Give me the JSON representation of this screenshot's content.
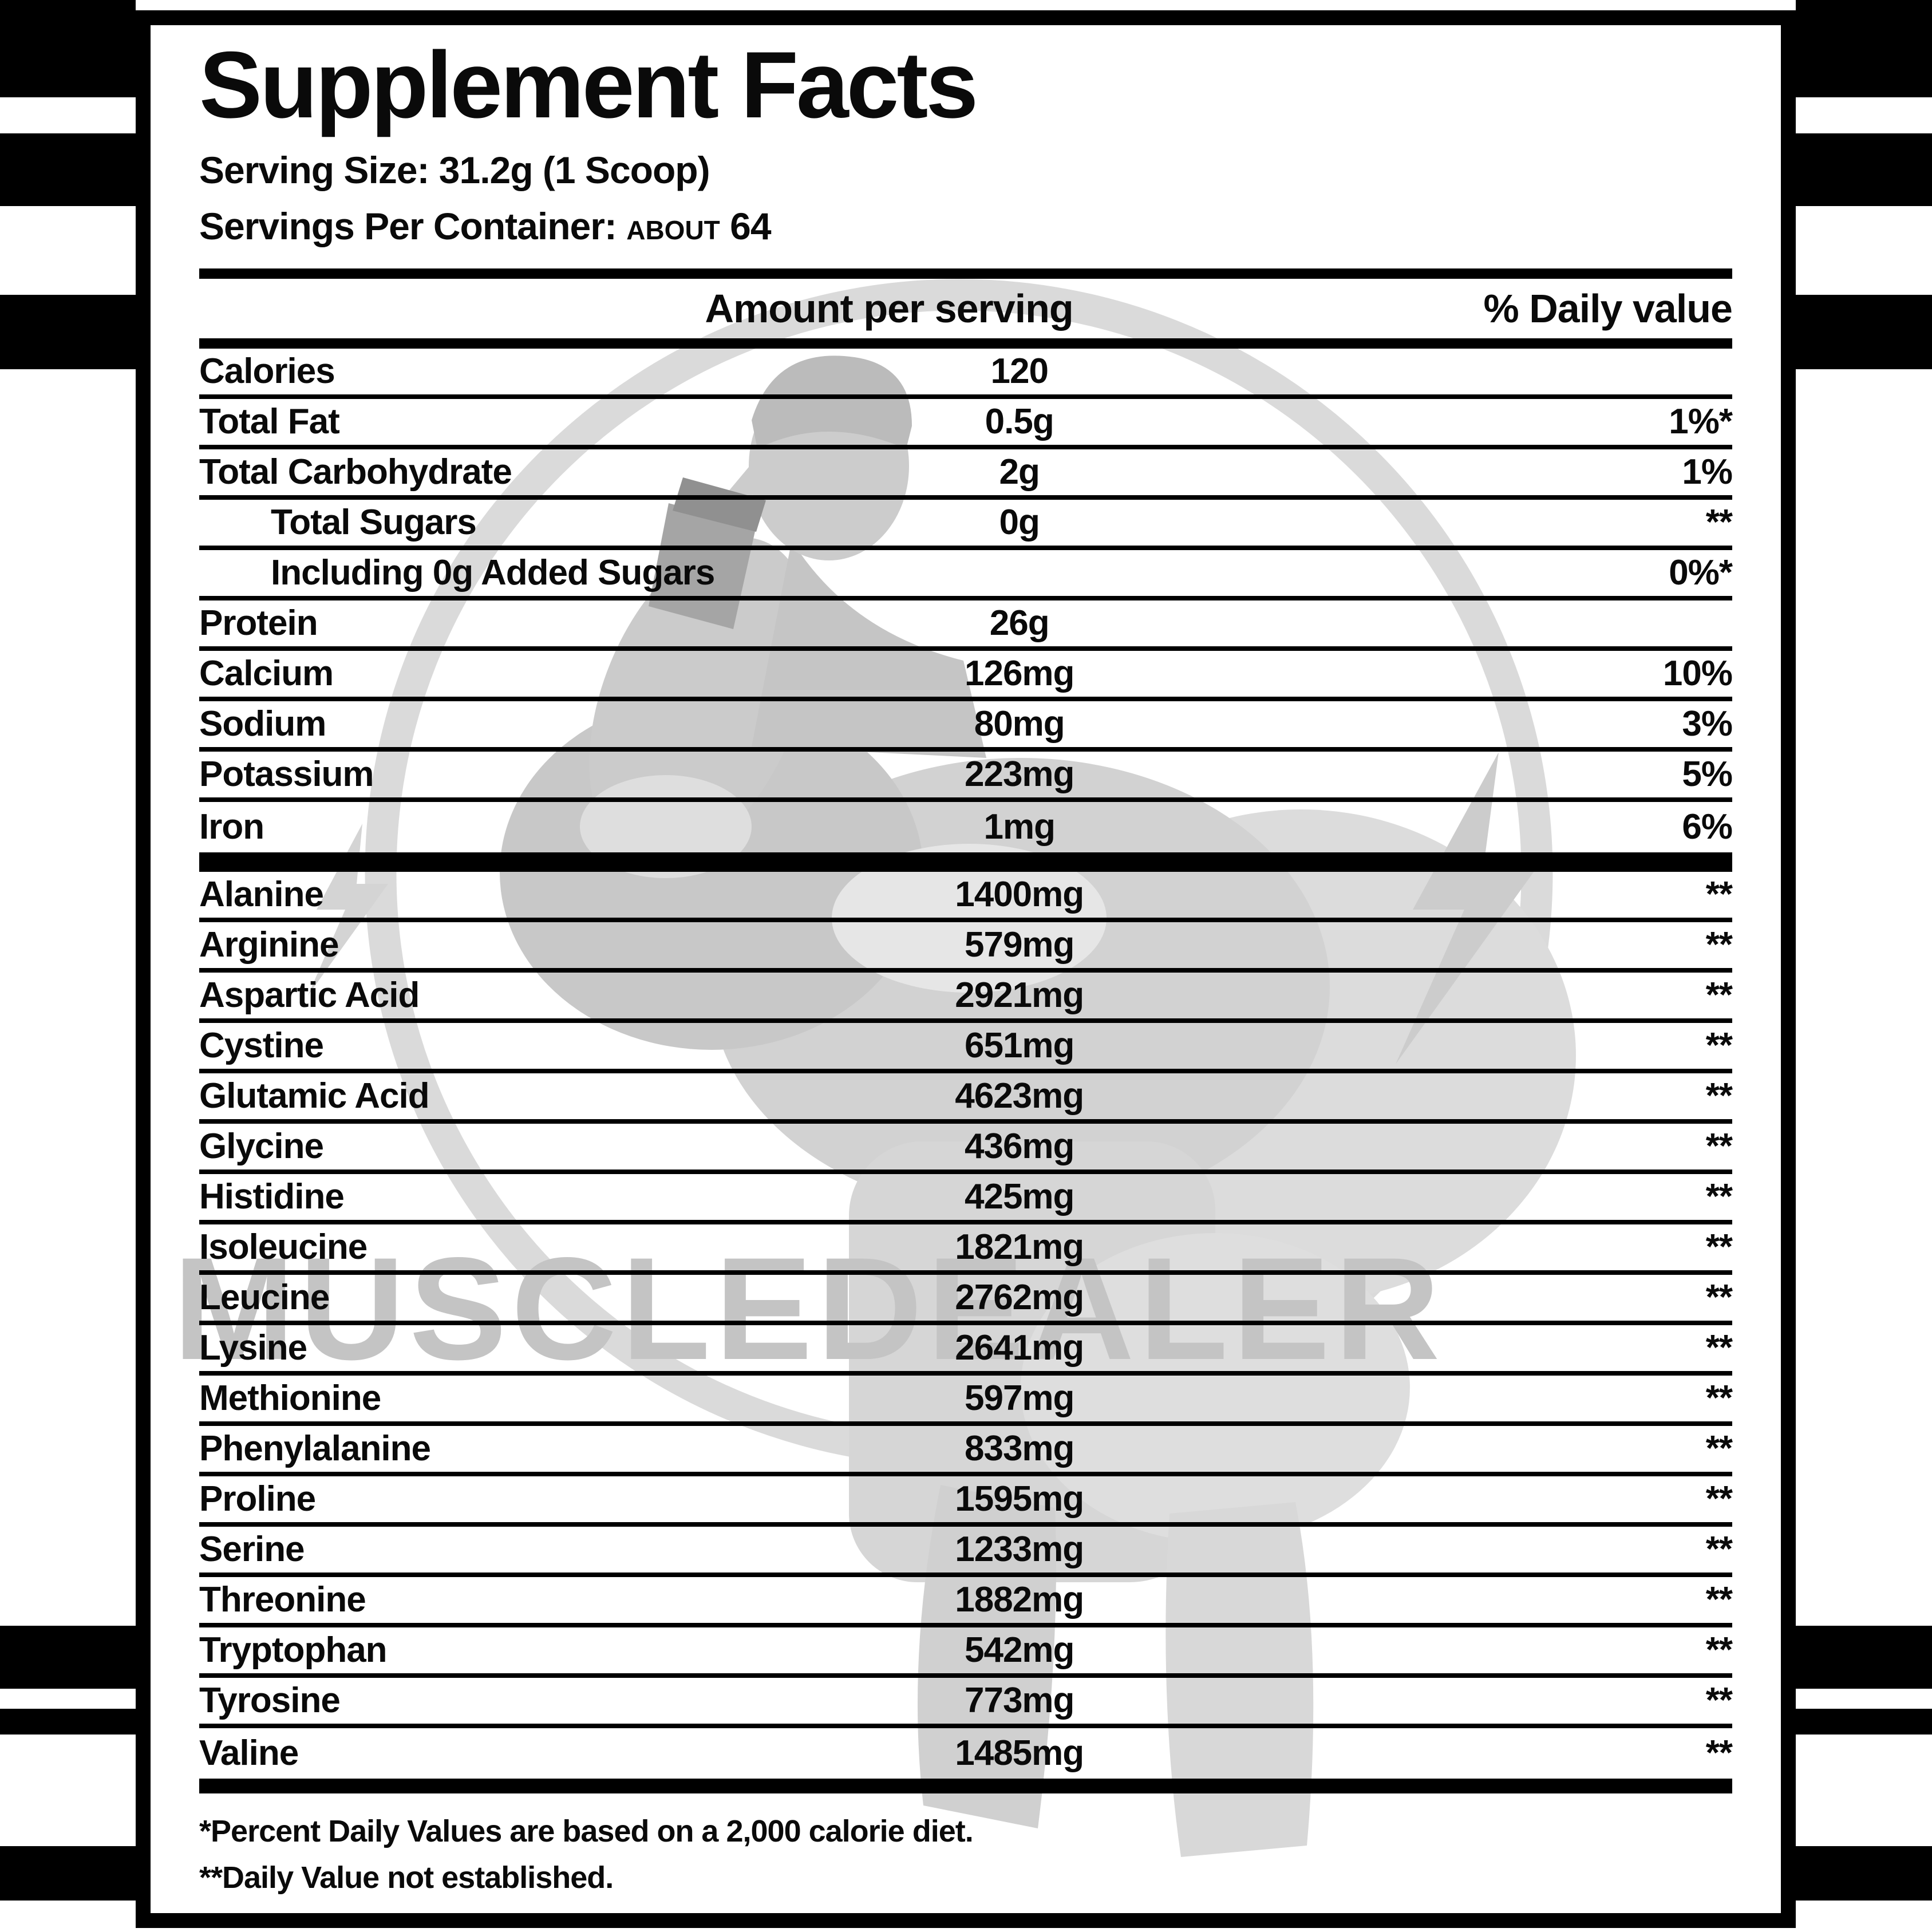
{
  "label": {
    "title": "Supplement Facts",
    "serving_size_line": "Serving Size: 31.2g (1 Scoop)",
    "servings_per_container_label": "Servings Per Container:",
    "servings_about": "ABOUT",
    "servings_value": "64",
    "columns": {
      "amount": "Amount per serving",
      "dv": "% Daily value"
    },
    "nutrients": [
      {
        "name": "Calories",
        "amount": "120",
        "dv": "",
        "indent": false
      },
      {
        "name": "Total Fat",
        "amount": "0.5g",
        "dv": "1%*",
        "indent": false
      },
      {
        "name": "Total Carbohydrate",
        "amount": "2g",
        "dv": "1%",
        "indent": false
      },
      {
        "name": "Total Sugars",
        "amount": "0g",
        "dv": "**",
        "indent": true
      },
      {
        "name": "Including 0g Added Sugars",
        "amount": "",
        "dv": "0%*",
        "indent": true
      },
      {
        "name": "Protein",
        "amount": "26g",
        "dv": "",
        "indent": false
      },
      {
        "name": "Calcium",
        "amount": "126mg",
        "dv": "10%",
        "indent": false
      },
      {
        "name": "Sodium",
        "amount": "80mg",
        "dv": "3%",
        "indent": false
      },
      {
        "name": "Potassium",
        "amount": "223mg",
        "dv": "5%",
        "indent": false
      },
      {
        "name": "Iron",
        "amount": "1mg",
        "dv": "6%",
        "indent": false
      }
    ],
    "amino_acids": [
      {
        "name": "Alanine",
        "amount": "1400mg",
        "dv": "**"
      },
      {
        "name": "Arginine",
        "amount": "579mg",
        "dv": "**"
      },
      {
        "name": "Aspartic Acid",
        "amount": "2921mg",
        "dv": "**"
      },
      {
        "name": "Cystine",
        "amount": "651mg",
        "dv": "**"
      },
      {
        "name": "Glutamic Acid",
        "amount": "4623mg",
        "dv": "**"
      },
      {
        "name": "Glycine",
        "amount": "436mg",
        "dv": "**"
      },
      {
        "name": "Histidine",
        "amount": "425mg",
        "dv": "**"
      },
      {
        "name": "Isoleucine",
        "amount": "1821mg",
        "dv": "**"
      },
      {
        "name": "Leucine",
        "amount": "2762mg",
        "dv": "**"
      },
      {
        "name": "Lysine",
        "amount": "2641mg",
        "dv": "**"
      },
      {
        "name": "Methionine",
        "amount": "597mg",
        "dv": "**"
      },
      {
        "name": "Phenylalanine",
        "amount": "833mg",
        "dv": "**"
      },
      {
        "name": "Proline",
        "amount": "1595mg",
        "dv": "**"
      },
      {
        "name": "Serine",
        "amount": "1233mg",
        "dv": "**"
      },
      {
        "name": "Threonine",
        "amount": "1882mg",
        "dv": "**"
      },
      {
        "name": "Tryptophan",
        "amount": "542mg",
        "dv": "**"
      },
      {
        "name": "Tyrosine",
        "amount": "773mg",
        "dv": "**"
      },
      {
        "name": "Valine",
        "amount": "1485mg",
        "dv": "**"
      }
    ],
    "footnotes": [
      "*Percent Daily Values are based on a 2,000 calorie diet.",
      "**Daily Value not established."
    ],
    "watermark_text": "MUSCLEDEALER"
  },
  "colors": {
    "text": "#0a0a0a",
    "stripe": "#000000",
    "watermark_grey": "#c8c8c8"
  }
}
